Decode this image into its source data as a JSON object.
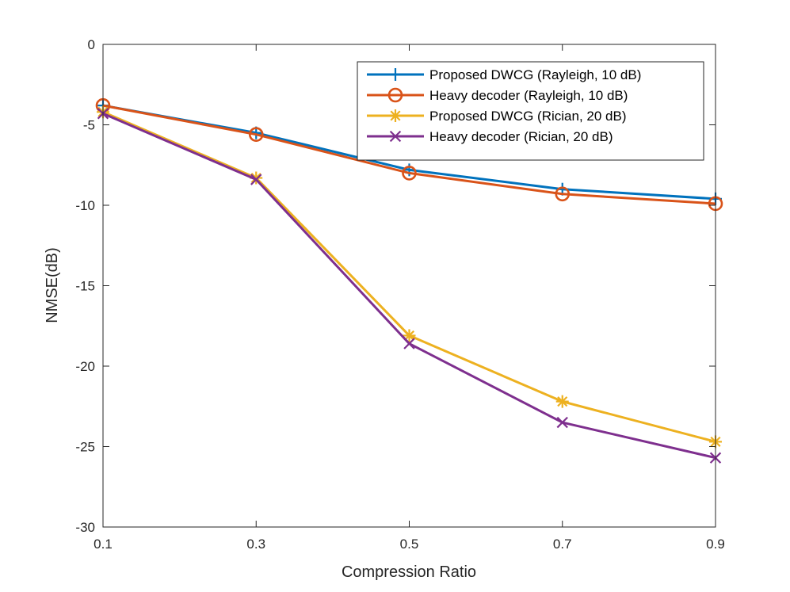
{
  "chart_data": {
    "type": "line",
    "title": "",
    "xlabel": "Compression Ratio",
    "ylabel": "NMSE(dB)",
    "xlim": [
      0.1,
      0.9
    ],
    "ylim": [
      -30,
      0
    ],
    "xticks": [
      "0.1",
      "0.3",
      "0.5",
      "0.7",
      "0.9"
    ],
    "yticks": [
      "0",
      "-5",
      "-10",
      "-15",
      "-20",
      "-25",
      "-30"
    ],
    "grid": false,
    "legend_position": "top-right",
    "x": [
      0.1,
      0.3,
      0.5,
      0.7,
      0.9
    ],
    "series": [
      {
        "name": "Proposed DWCG (Rayleigh, 10 dB)",
        "values": [
          -3.8,
          -5.5,
          -7.8,
          -9.0,
          -9.6
        ],
        "color": "#0072BD",
        "marker": "plus"
      },
      {
        "name": "Heavy decoder (Rayleigh, 10 dB)",
        "values": [
          -3.8,
          -5.6,
          -8.0,
          -9.3,
          -9.9
        ],
        "color": "#D95319",
        "marker": "circle"
      },
      {
        "name": "Proposed DWCG (Rician, 20 dB)",
        "values": [
          -4.2,
          -8.3,
          -18.1,
          -22.2,
          -24.7
        ],
        "color": "#EDB120",
        "marker": "asterisk"
      },
      {
        "name": "Heavy decoder (Rician, 20 dB)",
        "values": [
          -4.3,
          -8.4,
          -18.6,
          -23.5,
          -25.7
        ],
        "color": "#7E2F8E",
        "marker": "x"
      }
    ]
  }
}
